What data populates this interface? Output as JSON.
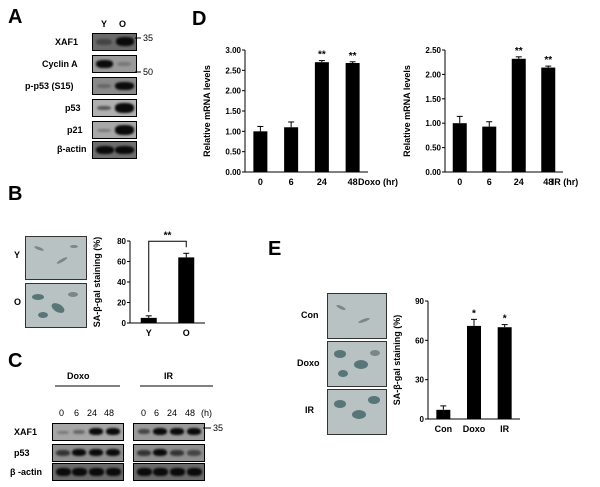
{
  "panels": {
    "A": {
      "letter": "A",
      "lanes": [
        "Y",
        "O"
      ],
      "rows": [
        "XAF1",
        "Cyclin A",
        "p-p53 (S15)",
        "p53",
        "p21",
        "β-actin"
      ],
      "markers": [
        "35",
        "50"
      ]
    },
    "B": {
      "letter": "B",
      "row_labels": [
        "Y",
        "O"
      ],
      "significance": "**"
    },
    "C": {
      "letter": "C",
      "groups": [
        "Doxo",
        "IR"
      ],
      "time_labels": [
        "0",
        "6",
        "24",
        "48"
      ],
      "time_unit": "(h)",
      "rows": [
        "XAF1",
        "p53",
        "β -actin"
      ],
      "marker": "35"
    },
    "D": {
      "letter": "D"
    },
    "E": {
      "letter": "E",
      "row_labels": [
        "Con",
        "Doxo",
        "IR"
      ]
    }
  },
  "chart_data": [
    {
      "id": "B",
      "type": "bar",
      "categories": [
        "Y",
        "O"
      ],
      "values": [
        5,
        64
      ],
      "errors": [
        2,
        4
      ],
      "ylabel": "SA-β-gal staining (%)",
      "ylim": [
        0,
        80
      ],
      "yticks": [
        "0",
        "20",
        "40",
        "60",
        "80"
      ],
      "annotations": [
        "**"
      ]
    },
    {
      "id": "D1",
      "type": "bar",
      "categories": [
        "0",
        "6",
        "24",
        "48"
      ],
      "values": [
        1.0,
        1.1,
        2.7,
        2.68
      ],
      "errors": [
        0.12,
        0.13,
        0.04,
        0.03
      ],
      "ylabel": "Relative mRNA levels",
      "xlabel": "Doxo (hr)",
      "ylim": [
        0,
        3.0
      ],
      "yticks": [
        "0.00",
        "0.50",
        "1.00",
        "1.50",
        "2.00",
        "2.50",
        "3.00"
      ],
      "annotations": [
        "",
        "",
        "**",
        "**"
      ]
    },
    {
      "id": "D2",
      "type": "bar",
      "categories": [
        "0",
        "6",
        "24",
        "48"
      ],
      "values": [
        1.0,
        0.93,
        2.32,
        2.14
      ],
      "errors": [
        0.14,
        0.1,
        0.04,
        0.03
      ],
      "ylabel": "Relative mRNA levels",
      "xlabel": "IR (hr)",
      "ylim": [
        0,
        2.5
      ],
      "yticks": [
        "0.00",
        "0.50",
        "1.00",
        "1.50",
        "2.00",
        "2.50"
      ],
      "annotations": [
        "",
        "",
        "**",
        "**"
      ]
    },
    {
      "id": "E",
      "type": "bar",
      "categories": [
        "Con",
        "Doxo",
        "IR"
      ],
      "values": [
        7,
        71,
        70
      ],
      "errors": [
        3,
        5,
        2
      ],
      "ylabel": "SA-β-gal staining (%)",
      "ylim": [
        0,
        90
      ],
      "yticks": [
        "0",
        "30",
        "60",
        "90"
      ],
      "annotations": [
        "",
        "*",
        "*"
      ]
    }
  ]
}
